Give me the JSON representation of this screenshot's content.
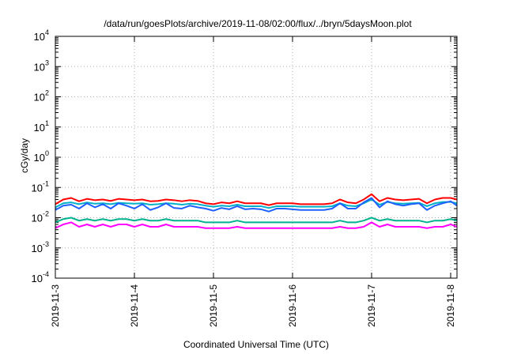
{
  "chart_data": {
    "type": "line",
    "title": "/data/run/goesPlots/archive/2019-11-08/02:00/flux/../bryn/5daysMoon.plot",
    "xlabel": "Coordinated Universal Time (UTC)",
    "ylabel": "cGy/day",
    "yscale": "log",
    "ylim": [
      0.0001,
      10000
    ],
    "y_tick_exponents": [
      -4,
      -3,
      -2,
      -1,
      0,
      1,
      2,
      3,
      4
    ],
    "y_tick_base": "10",
    "xlim": [
      0,
      5.08
    ],
    "x_ticks": [
      {
        "pos": 0,
        "label": "2019-11-3"
      },
      {
        "pos": 1,
        "label": "2019-11-4"
      },
      {
        "pos": 2,
        "label": "2019-11-5"
      },
      {
        "pos": 3,
        "label": "2019-11-6"
      },
      {
        "pos": 4,
        "label": "2019-11-7"
      },
      {
        "pos": 5,
        "label": "2019-11-8"
      }
    ],
    "grid": true,
    "legend": "none",
    "series": [
      {
        "color": "#ff0000",
        "x": [
          0,
          0.1,
          0.2,
          0.3,
          0.4,
          0.5,
          0.6,
          0.7,
          0.8,
          0.9,
          1.0,
          1.1,
          1.2,
          1.3,
          1.4,
          1.5,
          1.6,
          1.7,
          1.8,
          1.9,
          2.0,
          2.1,
          2.2,
          2.3,
          2.4,
          2.5,
          2.6,
          2.7,
          2.8,
          2.9,
          3.0,
          3.1,
          3.2,
          3.3,
          3.4,
          3.5,
          3.6,
          3.7,
          3.8,
          3.9,
          4.0,
          4.1,
          4.2,
          4.3,
          4.4,
          4.5,
          4.6,
          4.7,
          4.8,
          4.9,
          5.0,
          5.08
        ],
        "y": [
          0.028,
          0.04,
          0.045,
          0.035,
          0.042,
          0.038,
          0.04,
          0.036,
          0.042,
          0.04,
          0.038,
          0.04,
          0.035,
          0.036,
          0.04,
          0.038,
          0.035,
          0.038,
          0.036,
          0.03,
          0.028,
          0.032,
          0.03,
          0.035,
          0.03,
          0.03,
          0.03,
          0.026,
          0.03,
          0.03,
          0.03,
          0.028,
          0.028,
          0.028,
          0.028,
          0.03,
          0.04,
          0.032,
          0.03,
          0.04,
          0.06,
          0.035,
          0.045,
          0.04,
          0.038,
          0.04,
          0.042,
          0.03,
          0.04,
          0.045,
          0.045,
          0.04
        ]
      },
      {
        "color": "#00b38f",
        "x": [
          0,
          0.1,
          0.2,
          0.3,
          0.4,
          0.5,
          0.6,
          0.7,
          0.8,
          0.9,
          1.0,
          1.1,
          1.2,
          1.3,
          1.4,
          1.5,
          1.6,
          1.7,
          1.8,
          1.9,
          2.0,
          2.1,
          2.2,
          2.3,
          2.4,
          2.5,
          2.6,
          2.7,
          2.8,
          2.9,
          3.0,
          3.1,
          3.2,
          3.3,
          3.4,
          3.5,
          3.6,
          3.7,
          3.8,
          3.9,
          4.0,
          4.1,
          4.2,
          4.3,
          4.4,
          4.5,
          4.6,
          4.7,
          4.8,
          4.9,
          5.0,
          5.08
        ],
        "y": [
          0.007,
          0.009,
          0.01,
          0.008,
          0.009,
          0.008,
          0.009,
          0.008,
          0.009,
          0.009,
          0.008,
          0.009,
          0.008,
          0.008,
          0.009,
          0.008,
          0.008,
          0.008,
          0.008,
          0.007,
          0.007,
          0.007,
          0.007,
          0.008,
          0.007,
          0.007,
          0.007,
          0.007,
          0.007,
          0.007,
          0.007,
          0.007,
          0.007,
          0.007,
          0.007,
          0.007,
          0.008,
          0.007,
          0.007,
          0.008,
          0.01,
          0.008,
          0.009,
          0.008,
          0.008,
          0.008,
          0.008,
          0.007,
          0.008,
          0.008,
          0.009,
          0.008
        ]
      },
      {
        "color": "#00b0c8",
        "x": [
          0,
          0.1,
          0.2,
          0.3,
          0.4,
          0.5,
          0.6,
          0.7,
          0.8,
          0.9,
          1.0,
          1.1,
          1.2,
          1.3,
          1.4,
          1.5,
          1.6,
          1.7,
          1.8,
          1.9,
          2.0,
          2.1,
          2.2,
          2.3,
          2.4,
          2.5,
          2.6,
          2.7,
          2.8,
          2.9,
          3.0,
          3.1,
          3.2,
          3.3,
          3.4,
          3.5,
          3.6,
          3.7,
          3.8,
          3.9,
          4.0,
          4.1,
          4.2,
          4.3,
          4.4,
          4.5,
          4.6,
          4.7,
          4.8,
          4.9,
          5.0,
          5.08
        ],
        "y": [
          0.022,
          0.03,
          0.032,
          0.028,
          0.032,
          0.029,
          0.03,
          0.028,
          0.031,
          0.03,
          0.029,
          0.03,
          0.027,
          0.028,
          0.03,
          0.029,
          0.027,
          0.029,
          0.028,
          0.025,
          0.023,
          0.025,
          0.024,
          0.027,
          0.024,
          0.024,
          0.024,
          0.021,
          0.024,
          0.024,
          0.024,
          0.023,
          0.023,
          0.023,
          0.023,
          0.024,
          0.03,
          0.025,
          0.024,
          0.03,
          0.04,
          0.027,
          0.033,
          0.03,
          0.029,
          0.03,
          0.031,
          0.024,
          0.03,
          0.033,
          0.033,
          0.03
        ]
      },
      {
        "color": "#2060ff",
        "x": [
          0,
          0.1,
          0.2,
          0.3,
          0.4,
          0.5,
          0.6,
          0.7,
          0.8,
          0.9,
          1.0,
          1.1,
          1.2,
          1.3,
          1.4,
          1.5,
          1.6,
          1.7,
          1.8,
          1.9,
          2.0,
          2.1,
          2.2,
          2.3,
          2.4,
          2.5,
          2.6,
          2.7,
          2.8,
          2.9,
          3.0,
          3.1,
          3.2,
          3.3,
          3.4,
          3.5,
          3.6,
          3.7,
          3.8,
          3.9,
          4.0,
          4.1,
          4.2,
          4.3,
          4.4,
          4.5,
          4.6,
          4.7,
          4.8,
          4.9,
          5.0,
          5.08
        ],
        "y": [
          0.018,
          0.025,
          0.027,
          0.02,
          0.03,
          0.022,
          0.028,
          0.02,
          0.03,
          0.025,
          0.02,
          0.028,
          0.018,
          0.022,
          0.03,
          0.021,
          0.02,
          0.025,
          0.022,
          0.02,
          0.017,
          0.021,
          0.019,
          0.024,
          0.019,
          0.02,
          0.019,
          0.016,
          0.02,
          0.02,
          0.019,
          0.018,
          0.018,
          0.018,
          0.018,
          0.02,
          0.03,
          0.02,
          0.02,
          0.032,
          0.045,
          0.022,
          0.035,
          0.028,
          0.025,
          0.028,
          0.03,
          0.018,
          0.025,
          0.03,
          0.035,
          0.025
        ]
      },
      {
        "color": "#ff00ff",
        "x": [
          0,
          0.1,
          0.2,
          0.3,
          0.4,
          0.5,
          0.6,
          0.7,
          0.8,
          0.9,
          1.0,
          1.1,
          1.2,
          1.3,
          1.4,
          1.5,
          1.6,
          1.7,
          1.8,
          1.9,
          2.0,
          2.1,
          2.2,
          2.3,
          2.4,
          2.5,
          2.6,
          2.7,
          2.8,
          2.9,
          3.0,
          3.1,
          3.2,
          3.3,
          3.4,
          3.5,
          3.6,
          3.7,
          3.8,
          3.9,
          4.0,
          4.1,
          4.2,
          4.3,
          4.4,
          4.5,
          4.6,
          4.7,
          4.8,
          4.9,
          5.0,
          5.08
        ],
        "y": [
          0.0045,
          0.006,
          0.007,
          0.005,
          0.006,
          0.005,
          0.006,
          0.005,
          0.006,
          0.006,
          0.005,
          0.006,
          0.005,
          0.005,
          0.006,
          0.005,
          0.005,
          0.005,
          0.005,
          0.0045,
          0.0045,
          0.0045,
          0.0045,
          0.005,
          0.0045,
          0.0045,
          0.0045,
          0.0045,
          0.0045,
          0.0045,
          0.0045,
          0.0045,
          0.0045,
          0.0045,
          0.0045,
          0.0045,
          0.005,
          0.0045,
          0.0045,
          0.005,
          0.007,
          0.005,
          0.006,
          0.005,
          0.005,
          0.005,
          0.005,
          0.0045,
          0.005,
          0.005,
          0.006,
          0.005
        ]
      }
    ]
  }
}
